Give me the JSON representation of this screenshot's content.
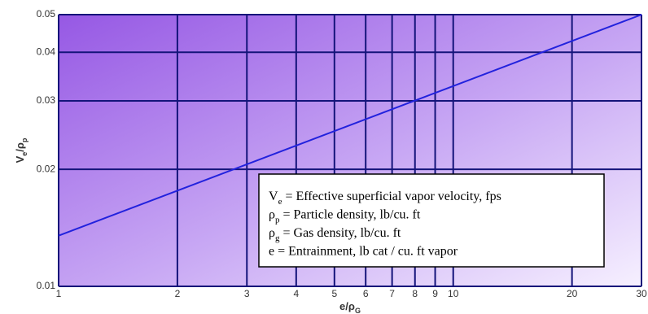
{
  "chart_data": {
    "type": "line",
    "xlabel": [
      "e/ρ",
      "G"
    ],
    "ylabel": [
      "V",
      "e",
      "/ρ",
      "p"
    ],
    "xscale": "log",
    "yscale": "log",
    "grid": true,
    "xlim": [
      1,
      30
    ],
    "ylim": [
      0.01,
      0.05
    ],
    "xticks": [
      1,
      2,
      3,
      4,
      5,
      6,
      7,
      8,
      9,
      10,
      20,
      30
    ],
    "yticks": [
      0.01,
      0.02,
      0.03,
      0.04,
      0.05
    ],
    "series": [
      {
        "color": "#2222dd",
        "x": [
          1,
          30
        ],
        "values": [
          0.0135,
          0.05
        ]
      }
    ],
    "annotations": [
      {
        "text": "V",
        "sub": "e",
        "rest": " = Effective superficial vapor velocity, fps"
      },
      {
        "text": "ρ",
        "sub": "p",
        "rest": " = Particle density, lb/cu. ft"
      },
      {
        "text": "ρ",
        "sub": "g",
        "rest": " = Gas density, lb/cu. ft"
      },
      {
        "text": "e",
        "sub": "",
        "rest": "  = Entrainment, lb cat / cu. ft vapor"
      }
    ]
  }
}
